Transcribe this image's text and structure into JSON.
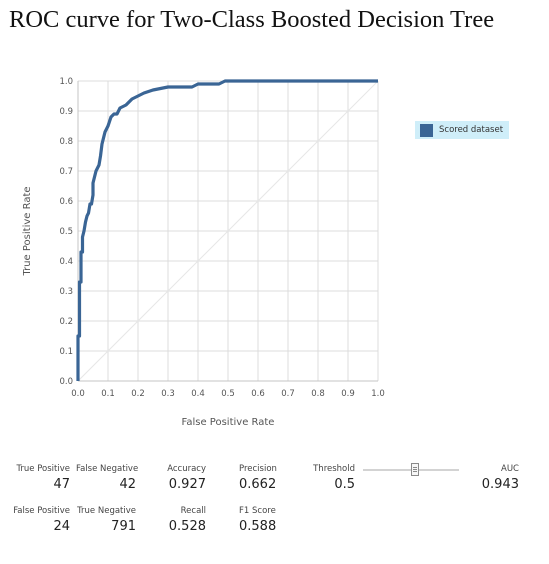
{
  "page": {
    "title": "ROC curve for Two-Class Boosted Decision Tree"
  },
  "chart_data": {
    "type": "line",
    "title": "ROC curve for Two-Class Boosted Decision Tree",
    "xlabel": "False Positive Rate",
    "ylabel": "True Positive Rate",
    "xlim": [
      0,
      1
    ],
    "ylim": [
      0,
      1
    ],
    "x_ticks": [
      "0.0",
      "0.1",
      "0.2",
      "0.3",
      "0.4",
      "0.5",
      "0.6",
      "0.7",
      "0.8",
      "0.9",
      "1.0"
    ],
    "y_ticks": [
      "0.0",
      "0.1",
      "0.2",
      "0.3",
      "0.4",
      "0.5",
      "0.6",
      "0.7",
      "0.8",
      "0.9",
      "1.0"
    ],
    "grid": true,
    "legend_position": "right",
    "diagonal_reference": true,
    "series": [
      {
        "name": "Scored dataset",
        "color": "#3a6595",
        "x": [
          0,
          0,
          0.005,
          0.005,
          0.01,
          0.01,
          0.015,
          0.015,
          0.02,
          0.025,
          0.03,
          0.035,
          0.04,
          0.045,
          0.05,
          0.05,
          0.055,
          0.06,
          0.065,
          0.07,
          0.075,
          0.08,
          0.085,
          0.09,
          0.1,
          0.11,
          0.12,
          0.13,
          0.14,
          0.16,
          0.18,
          0.2,
          0.22,
          0.25,
          0.3,
          0.38,
          0.4,
          0.47,
          0.49,
          1.0
        ],
        "y": [
          0,
          0.15,
          0.15,
          0.33,
          0.33,
          0.43,
          0.43,
          0.48,
          0.5,
          0.53,
          0.55,
          0.56,
          0.59,
          0.59,
          0.62,
          0.66,
          0.68,
          0.7,
          0.71,
          0.72,
          0.75,
          0.79,
          0.81,
          0.83,
          0.85,
          0.88,
          0.89,
          0.89,
          0.91,
          0.92,
          0.94,
          0.95,
          0.96,
          0.97,
          0.98,
          0.98,
          0.99,
          0.99,
          1.0,
          1.0
        ]
      }
    ]
  },
  "metrics": {
    "true_positive": {
      "label": "True Positive",
      "value": "47"
    },
    "false_negative": {
      "label": "False Negative",
      "value": "42"
    },
    "false_positive": {
      "label": "False Positive",
      "value": "24"
    },
    "true_negative": {
      "label": "True Negative",
      "value": "791"
    },
    "accuracy": {
      "label": "Accuracy",
      "value": "0.927"
    },
    "precision": {
      "label": "Precision",
      "value": "0.662"
    },
    "recall": {
      "label": "Recall",
      "value": "0.528"
    },
    "f1": {
      "label": "F1 Score",
      "value": "0.588"
    },
    "threshold": {
      "label": "Threshold",
      "value": "0.5",
      "slider_value": 0.5
    },
    "auc": {
      "label": "AUC",
      "value": "0.943"
    }
  }
}
